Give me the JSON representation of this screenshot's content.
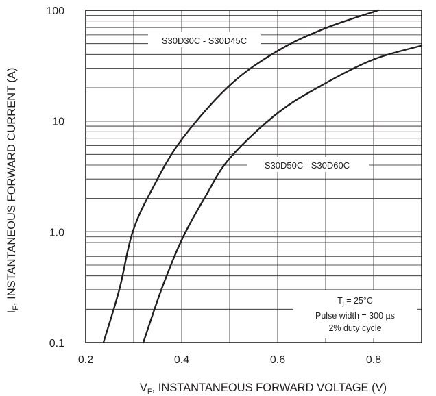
{
  "chart_data": {
    "type": "line",
    "x_scale": "linear",
    "y_scale": "log",
    "xlim": [
      0.2,
      0.9
    ],
    "ylim": [
      0.1,
      100
    ],
    "grid": true,
    "x_ticks": [
      {
        "value": 0.2,
        "label": "0.2"
      },
      {
        "value": 0.4,
        "label": "0.4"
      },
      {
        "value": 0.6,
        "label": "0.6"
      },
      {
        "value": 0.8,
        "label": "0.8"
      }
    ],
    "y_ticks": [
      {
        "value": 0.1,
        "label": "0.1"
      },
      {
        "value": 1,
        "label": "1.0"
      },
      {
        "value": 10,
        "label": "10"
      },
      {
        "value": 100,
        "label": "100"
      }
    ],
    "xlabel": {
      "main": "V",
      "sub": "F",
      "rest": ", INSTANTANEOUS FORWARD VOLTAGE (V)"
    },
    "ylabel": {
      "main": "I",
      "sub": "F",
      "rest": ", INSTANTANEOUS FORWARD CURRENT (A)"
    },
    "series": [
      {
        "name": "S30D30C - S30D45C",
        "color": "#231f20",
        "points": [
          [
            0.237,
            0.1
          ],
          [
            0.27,
            0.3
          ],
          [
            0.298,
            1.0
          ],
          [
            0.34,
            2.5
          ],
          [
            0.4,
            6.8
          ],
          [
            0.5,
            21
          ],
          [
            0.6,
            43
          ],
          [
            0.7,
            69
          ],
          [
            0.81,
            100
          ]
        ]
      },
      {
        "name": "S30D50C - S30D60C",
        "color": "#231f20",
        "points": [
          [
            0.32,
            0.1
          ],
          [
            0.36,
            0.32
          ],
          [
            0.402,
            0.88
          ],
          [
            0.45,
            2.1
          ],
          [
            0.5,
            4.6
          ],
          [
            0.6,
            11.8
          ],
          [
            0.7,
            22
          ],
          [
            0.8,
            36
          ],
          [
            0.9,
            48
          ]
        ]
      }
    ],
    "notes": {
      "tj": {
        "main": "T",
        "sub": "j",
        "rest": " = 25°C"
      },
      "pulse": "Pulse width = 300 µs",
      "duty": "2% duty cycle"
    }
  }
}
